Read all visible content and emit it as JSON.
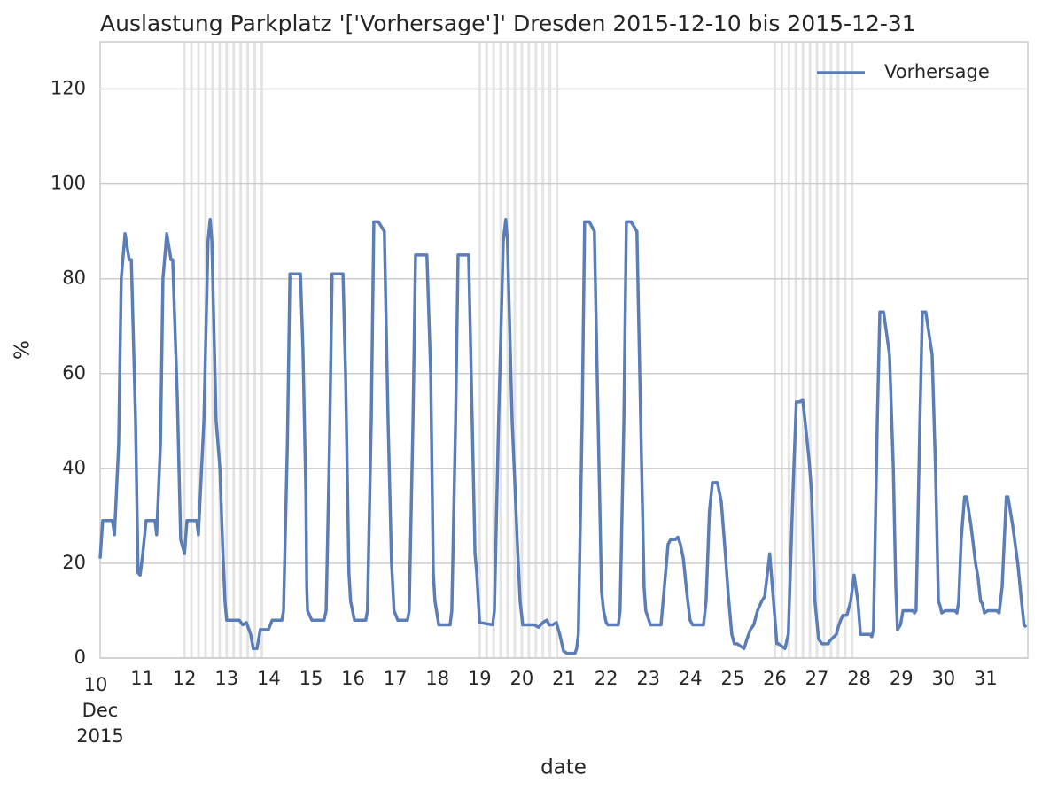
{
  "chart_data": {
    "type": "line",
    "title": "Auslastung Parkplatz '['Vorhersage']' Dresden 2015-12-10 bis 2015-12-31",
    "xlabel": "date",
    "ylabel": "%",
    "x": [
      10.0,
      10.06,
      10.29,
      10.34,
      10.44,
      10.5,
      10.59,
      10.69,
      10.74,
      10.84,
      10.9,
      10.95,
      11.01,
      11.09,
      11.3,
      11.34,
      11.43,
      11.49,
      11.58,
      11.68,
      11.72,
      11.83,
      11.91,
      12.0,
      12.06,
      12.29,
      12.33,
      12.46,
      12.56,
      12.61,
      12.65,
      12.75,
      12.84,
      12.9,
      12.96,
      13.0,
      13.3,
      13.38,
      13.47,
      13.57,
      13.63,
      13.72,
      13.8,
      13.99,
      14.08,
      14.31,
      14.35,
      14.44,
      14.5,
      14.75,
      14.81,
      14.88,
      14.9,
      14.92,
      15.02,
      15.31,
      15.36,
      15.44,
      15.5,
      15.76,
      15.82,
      15.9,
      15.94,
      16.03,
      16.3,
      16.34,
      16.43,
      16.49,
      16.6,
      16.74,
      16.83,
      16.91,
      16.97,
      17.06,
      17.29,
      17.33,
      17.42,
      17.48,
      17.75,
      17.84,
      17.9,
      17.94,
      18.03,
      18.3,
      18.34,
      18.43,
      18.49,
      18.74,
      18.8,
      18.89,
      18.93,
      19.0,
      19.31,
      19.35,
      19.45,
      19.56,
      19.62,
      19.66,
      19.77,
      19.83,
      19.89,
      19.96,
      20.02,
      20.29,
      20.4,
      20.5,
      20.59,
      20.65,
      20.73,
      20.82,
      20.9,
      20.99,
      21.07,
      21.26,
      21.3,
      21.34,
      21.43,
      21.49,
      21.6,
      21.72,
      21.81,
      21.89,
      21.94,
      22.0,
      22.04,
      22.29,
      22.33,
      22.42,
      22.48,
      22.59,
      22.73,
      22.82,
      22.9,
      22.94,
      23.05,
      23.3,
      23.38,
      23.47,
      23.53,
      23.64,
      23.7,
      23.76,
      23.83,
      23.91,
      23.99,
      24.05,
      24.31,
      24.37,
      24.45,
      24.52,
      24.64,
      24.73,
      24.81,
      24.9,
      24.98,
      25.04,
      25.11,
      25.27,
      25.34,
      25.42,
      25.5,
      25.59,
      25.69,
      25.76,
      25.88,
      25.97,
      26.05,
      26.09,
      26.24,
      26.32,
      26.43,
      26.51,
      26.6,
      26.66,
      26.74,
      26.81,
      26.87,
      26.95,
      27.04,
      27.12,
      27.27,
      27.29,
      27.46,
      27.52,
      27.61,
      27.71,
      27.8,
      27.88,
      27.97,
      28.03,
      28.26,
      28.3,
      28.34,
      28.43,
      28.49,
      28.58,
      28.72,
      28.81,
      28.87,
      28.91,
      28.98,
      29.04,
      29.27,
      29.31,
      29.35,
      29.44,
      29.5,
      29.58,
      29.73,
      29.81,
      29.88,
      29.92,
      29.96,
      30.04,
      30.27,
      30.32,
      30.36,
      30.42,
      30.5,
      30.55,
      30.65,
      30.76,
      30.82,
      30.88,
      30.92,
      30.97,
      31.05,
      31.26,
      31.32,
      31.39,
      31.49,
      31.53,
      31.64,
      31.76,
      31.85,
      31.91,
      31.96
    ],
    "series": [
      {
        "name": "Vorhersage",
        "color": "#5b7db8",
        "values": [
          21,
          29,
          29,
          26,
          45,
          80,
          89.5,
          84,
          84,
          50,
          18,
          17.5,
          22,
          29,
          29,
          26,
          45,
          80,
          89.5,
          84,
          84,
          55,
          25,
          22,
          29,
          29,
          26,
          50,
          88,
          92.5,
          88,
          50,
          40,
          25,
          12,
          8,
          8,
          7,
          7.5,
          5,
          2,
          2,
          6,
          6,
          8,
          8,
          10,
          45,
          81,
          81,
          65,
          35,
          15,
          10,
          8,
          8,
          10,
          45,
          81,
          81,
          60,
          18,
          12,
          8,
          8,
          10,
          50,
          92,
          92,
          90,
          50,
          20,
          10,
          8,
          8,
          10,
          50,
          85,
          85,
          60,
          18,
          12,
          7,
          7,
          10,
          50,
          85,
          85,
          60,
          22,
          18,
          7.5,
          7,
          10,
          50,
          88,
          92.5,
          88,
          50,
          38,
          25,
          12,
          7,
          7,
          6.5,
          7.5,
          8,
          7,
          7,
          7.5,
          5,
          1.5,
          1,
          1,
          2,
          5,
          50,
          92,
          92,
          90,
          50,
          14,
          10,
          7.5,
          7,
          7,
          10,
          50,
          92,
          92,
          90,
          50,
          15,
          10,
          7,
          7,
          15,
          24,
          25,
          25,
          25.5,
          24,
          21,
          14,
          8,
          7,
          7,
          12,
          31,
          37,
          37,
          33,
          24,
          13,
          5,
          3,
          3,
          2,
          4,
          6,
          7,
          10,
          12,
          13,
          22,
          12,
          3,
          3,
          2,
          5,
          35,
          54,
          54,
          54.5,
          48,
          42,
          35,
          12,
          4,
          3,
          3,
          3.5,
          5,
          7,
          9,
          9,
          12,
          17.5,
          12,
          5,
          5,
          4.5,
          6,
          50,
          73,
          73,
          64,
          40,
          15,
          6,
          7,
          10,
          10,
          9.5,
          10,
          50,
          73,
          73,
          64,
          40,
          12,
          11,
          9.5,
          10,
          10,
          9.5,
          12,
          25,
          34,
          34,
          28,
          20,
          17,
          12,
          11.5,
          9.5,
          10,
          10,
          9.5,
          15,
          34,
          34,
          28,
          20,
          12,
          7,
          6.5
        ]
      }
    ],
    "xlim": [
      10,
      32
    ],
    "xticks": [
      {
        "value": 10,
        "label": "10\nDec\n2015"
      },
      11,
      12,
      13,
      14,
      15,
      16,
      17,
      18,
      19,
      20,
      21,
      22,
      23,
      24,
      25,
      26,
      27,
      28,
      29,
      30,
      31
    ],
    "ylim": [
      0,
      130
    ],
    "yticks": [
      0,
      20,
      40,
      60,
      80,
      100,
      120
    ],
    "grid": true,
    "legend": "upper right",
    "shaded_spans": [
      [
        12,
        13.96
      ],
      [
        19,
        20.96
      ],
      [
        26,
        27.96
      ]
    ]
  }
}
